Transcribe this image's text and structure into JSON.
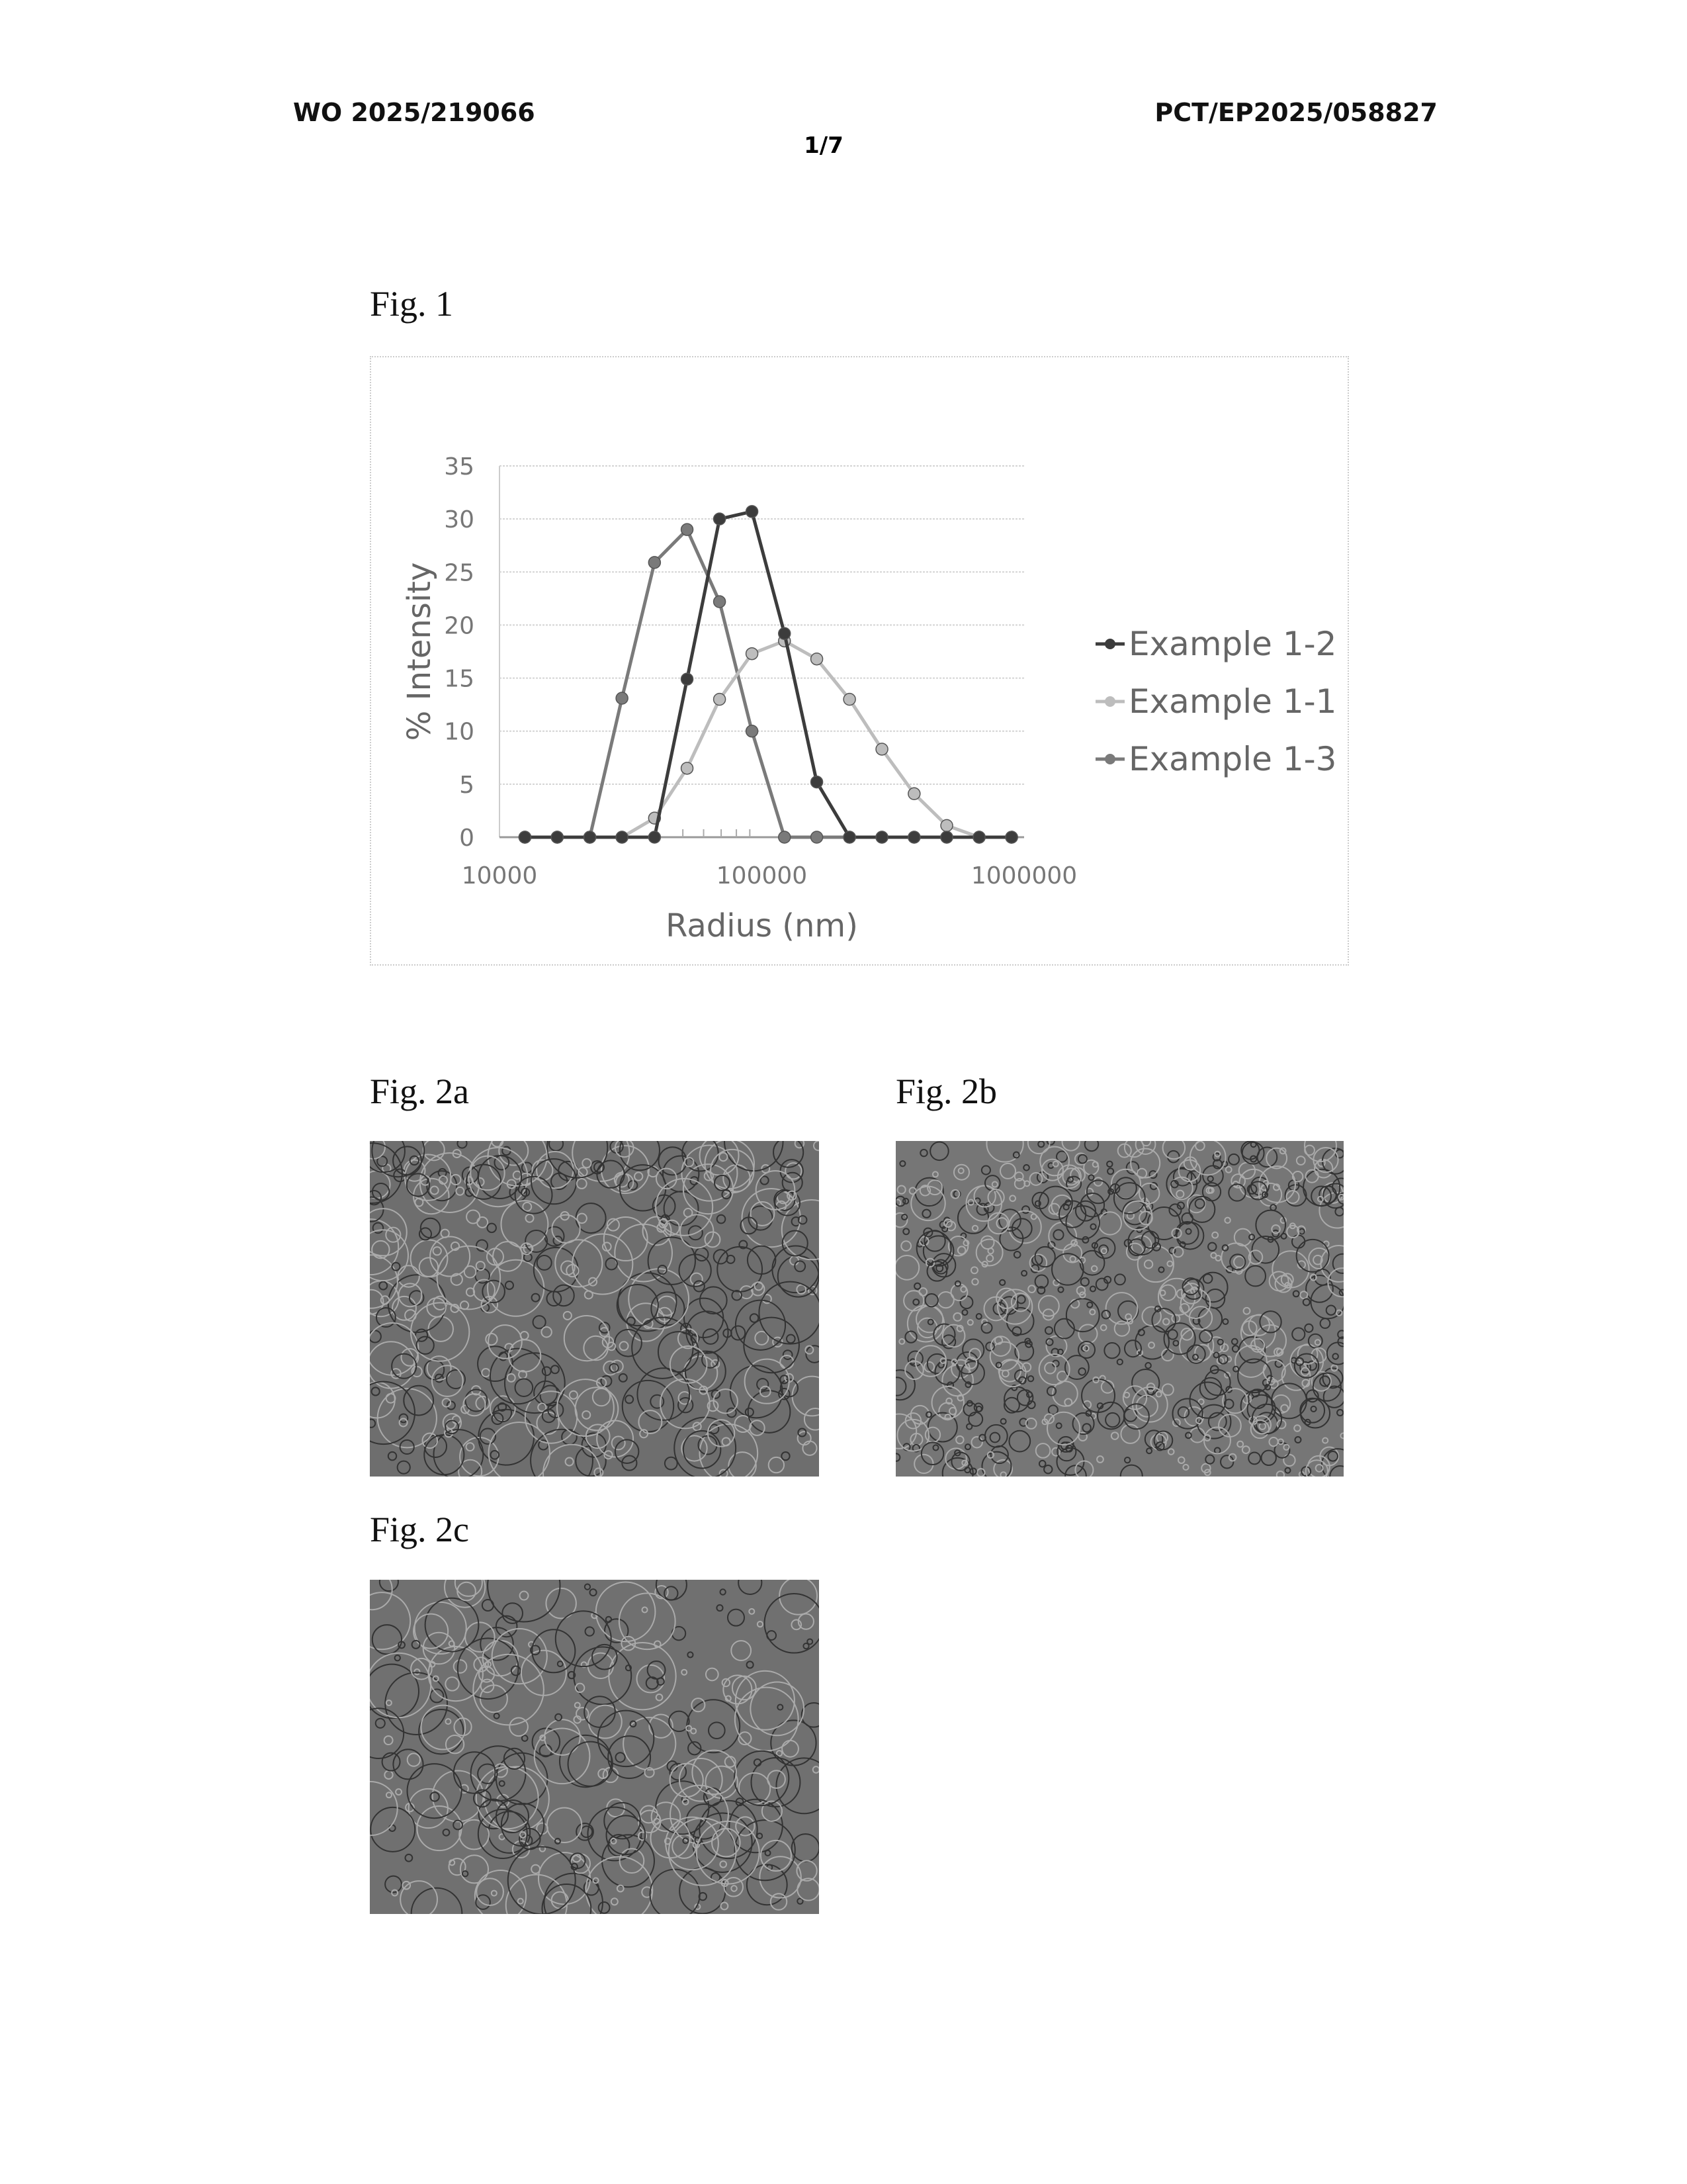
{
  "header": {
    "publication_number": "WO 2025/219066",
    "application_number": "PCT/EP2025/058827",
    "page": "1/7"
  },
  "figures": {
    "fig1_label": "Fig. 1",
    "fig2a_label": "Fig. 2a",
    "fig2b_label": "Fig. 2b",
    "fig2c_label": "Fig. 2c"
  },
  "chart_data": {
    "type": "line",
    "title": "",
    "xlabel": "Radius (nm)",
    "ylabel": "% Intensity",
    "x_scale": "log",
    "xlim": [
      10000,
      1000000
    ],
    "ylim": [
      0,
      35
    ],
    "x_ticks": [
      "10000",
      "100000",
      "1000000"
    ],
    "y_ticks": [
      "0",
      "5",
      "10",
      "15",
      "20",
      "25",
      "30",
      "35"
    ],
    "grid": "horizontal",
    "legend_position": "right",
    "x": [
      12500,
      16600,
      22100,
      29300,
      39000,
      51900,
      69000,
      91700,
      122000,
      162000,
      216000,
      287000,
      381000,
      507000,
      674000,
      896000
    ],
    "series": [
      {
        "name": "Example 1-2",
        "color": "#3c3c3c",
        "values": [
          0,
          0,
          0,
          0,
          0,
          14.9,
          30.0,
          30.7,
          19.2,
          5.2,
          0,
          0,
          0,
          0,
          0,
          0
        ]
      },
      {
        "name": "Example 1-1",
        "color": "#bdbdbd",
        "values": [
          0,
          0,
          0,
          0,
          1.8,
          6.5,
          13.0,
          17.3,
          18.5,
          16.8,
          13.0,
          8.3,
          4.1,
          1.1,
          0,
          0
        ]
      },
      {
        "name": "Example 1-3",
        "color": "#7a7a7a",
        "values": [
          0,
          0,
          0,
          13.1,
          25.9,
          29.0,
          22.2,
          10.0,
          0,
          0,
          0,
          0,
          0,
          0,
          0,
          0
        ]
      }
    ]
  }
}
